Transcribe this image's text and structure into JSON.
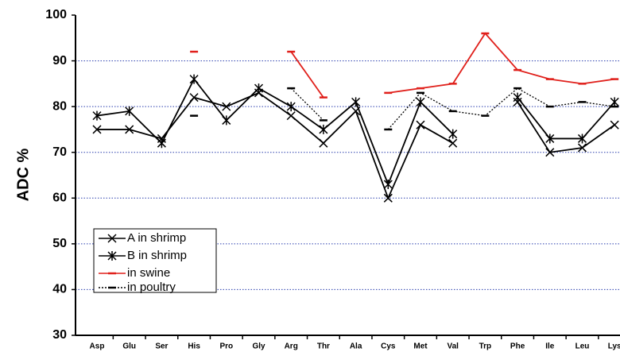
{
  "chart_data": {
    "type": "line",
    "ylabel": "ADC %",
    "categories": [
      "Asp",
      "Glu",
      "Ser",
      "His",
      "Pro",
      "Gly",
      "Arg",
      "Thr",
      "Ala",
      "Cys",
      "Met",
      "Val",
      "Trp",
      "Phe",
      "Ile",
      "Leu",
      "Lys"
    ],
    "series": [
      {
        "name": "A in shrimp",
        "color": "#000000",
        "marker": "x",
        "dash": "solid",
        "values": [
          75,
          75,
          73,
          82,
          80,
          83,
          78,
          72,
          79,
          60,
          76,
          72,
          null,
          81,
          70,
          71,
          76
        ]
      },
      {
        "name": "B in shrimp",
        "color": "#000000",
        "marker": "star",
        "dash": "solid",
        "values": [
          78,
          79,
          72,
          86,
          77,
          84,
          80,
          75,
          81,
          63,
          81,
          74,
          null,
          82,
          73,
          73,
          81
        ]
      },
      {
        "name": "in swine",
        "color": "#e0201b",
        "marker": "dash",
        "dash": "solid",
        "values": [
          null,
          null,
          null,
          92,
          null,
          null,
          92,
          82,
          null,
          83,
          84,
          85,
          96,
          88,
          86,
          85,
          86
        ]
      },
      {
        "name": "in poultry",
        "color": "#000000",
        "marker": "dash",
        "dash": "dotted",
        "values": [
          null,
          null,
          null,
          78,
          null,
          null,
          84,
          77,
          null,
          75,
          83,
          79,
          78,
          84,
          80,
          81,
          80
        ]
      }
    ],
    "ylim": [
      30,
      100
    ],
    "yticks": [
      30,
      40,
      50,
      60,
      70,
      80,
      90,
      100
    ],
    "grid": true,
    "legend": "lower left"
  }
}
